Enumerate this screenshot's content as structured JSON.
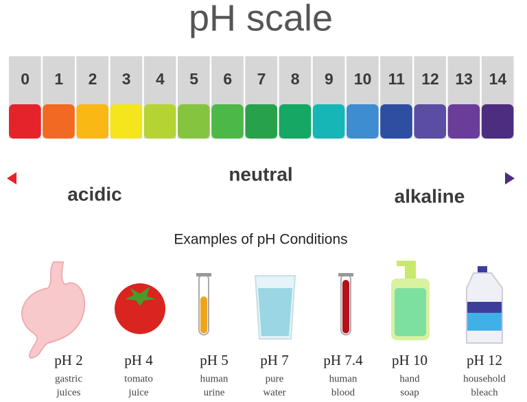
{
  "title": "pH scale",
  "levels": [
    {
      "label": 0,
      "color": "#e5232a"
    },
    {
      "label": 1,
      "color": "#f26a21"
    },
    {
      "label": 2,
      "color": "#f9b814"
    },
    {
      "label": 3,
      "color": "#f4e51c"
    },
    {
      "label": 4,
      "color": "#b5d333"
    },
    {
      "label": 5,
      "color": "#85c43f"
    },
    {
      "label": 6,
      "color": "#4cb848"
    },
    {
      "label": 7,
      "color": "#27a24a"
    },
    {
      "label": 8,
      "color": "#15a764"
    },
    {
      "label": 9,
      "color": "#16b6b6"
    },
    {
      "label": 10,
      "color": "#3d8dd0"
    },
    {
      "label": 11,
      "color": "#2e4fa1"
    },
    {
      "label": 12,
      "color": "#5b4ea2"
    },
    {
      "label": 13,
      "color": "#6b3d9a"
    },
    {
      "label": 14,
      "color": "#4c2d7f"
    }
  ],
  "neutral": "neutral",
  "acidic": "acidic",
  "alkaline": "alkaline",
  "examples_title": "Examples of pH Conditions",
  "examples": [
    {
      "ph": "pH 2",
      "description": [
        "gastric",
        "juices"
      ]
    },
    {
      "ph": "pH 4",
      "description": [
        "tomato",
        "juice"
      ]
    },
    {
      "ph": "pH 5",
      "description": [
        "human",
        "urine"
      ]
    },
    {
      "ph": "pH 7",
      "description": [
        "pure",
        "water"
      ]
    },
    {
      "ph": "pH 7.4",
      "description": [
        "human",
        "blood"
      ]
    },
    {
      "ph": "pH 10",
      "description": [
        "hand",
        "soap"
      ]
    },
    {
      "ph": "pH 12",
      "description": [
        "household",
        "bleach"
      ]
    }
  ]
}
